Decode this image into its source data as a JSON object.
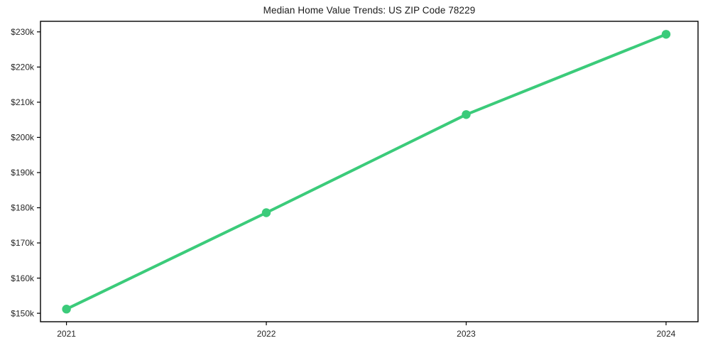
{
  "figure": {
    "title": "Median Home Value Trends: US ZIP Code 78229"
  },
  "chart_data": {
    "type": "line",
    "title": "Median Home Value Trends: US ZIP Code 78229",
    "x": [
      2021,
      2022,
      2023,
      2024
    ],
    "x_tick_labels": [
      "2021",
      "2022",
      "2023",
      "2024"
    ],
    "series": [
      {
        "name": "Median Home Value",
        "values": [
          151200,
          178600,
          206500,
          229300
        ],
        "color": "#3bcb7a",
        "line_width": 4,
        "marker": "circle",
        "marker_radius": 6.2
      }
    ],
    "y_ticks": [
      150000,
      160000,
      170000,
      180000,
      190000,
      200000,
      210000,
      220000,
      230000
    ],
    "y_tick_labels": [
      "$150k",
      "$160k",
      "$170k",
      "$180k",
      "$190k",
      "$200k",
      "$210k",
      "$220k",
      "$230k"
    ],
    "xlim": [
      2020.87,
      2024.16
    ],
    "ylim": [
      147600,
      233000
    ],
    "xlabel": "",
    "ylabel": "",
    "grid": false,
    "legend": false,
    "colors": {
      "background": "#ffffff",
      "axis": "#000000",
      "tick_text": "#262626"
    }
  }
}
